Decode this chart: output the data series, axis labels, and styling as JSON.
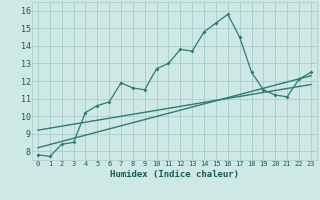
{
  "title": "",
  "xlabel": "Humidex (Indice chaleur)",
  "xlim": [
    -0.5,
    23.5
  ],
  "ylim": [
    7.5,
    16.5
  ],
  "xticks": [
    0,
    1,
    2,
    3,
    4,
    5,
    6,
    7,
    8,
    9,
    10,
    11,
    12,
    13,
    14,
    15,
    16,
    17,
    18,
    19,
    20,
    21,
    22,
    23
  ],
  "yticks": [
    8,
    9,
    10,
    11,
    12,
    13,
    14,
    15,
    16
  ],
  "bg_color": "#cde8e5",
  "grid_color": "#a8ccca",
  "line_color": "#2e7b70",
  "main_x": [
    0,
    1,
    2,
    3,
    4,
    5,
    6,
    7,
    8,
    9,
    10,
    11,
    12,
    13,
    14,
    15,
    16,
    17,
    18,
    19,
    20,
    21,
    22,
    23
  ],
  "main_y": [
    7.8,
    7.7,
    8.4,
    8.5,
    10.2,
    10.6,
    10.8,
    11.9,
    11.6,
    11.5,
    12.7,
    13.0,
    13.8,
    13.7,
    14.8,
    15.3,
    15.8,
    14.5,
    12.5,
    11.5,
    11.2,
    11.1,
    12.1,
    12.5
  ],
  "trend1_x": [
    0,
    23
  ],
  "trend1_y": [
    8.2,
    12.3
  ],
  "trend2_x": [
    0,
    23
  ],
  "trend2_y": [
    9.2,
    11.8
  ]
}
